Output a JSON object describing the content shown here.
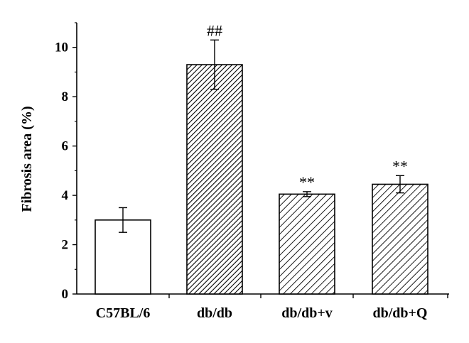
{
  "chart_data": {
    "type": "bar",
    "categories": [
      "C57BL/6",
      "db/db",
      "db/db+v",
      "db/db+Q"
    ],
    "values": [
      3.0,
      9.3,
      4.05,
      4.45
    ],
    "errors": [
      0.5,
      1.0,
      0.1,
      0.35
    ],
    "annotations": [
      "",
      "##",
      "**",
      "**"
    ],
    "fills": [
      "solid",
      "dense-hatch",
      "hatch",
      "hatch"
    ],
    "title": "",
    "xlabel": "",
    "ylabel": "Fibrosis area (%)",
    "ylim": [
      0,
      11
    ],
    "yticks": [
      0,
      2,
      4,
      6,
      8,
      10
    ],
    "grid": false,
    "colors": {
      "bar_fill": "#ffffff",
      "stroke": "#000000"
    }
  }
}
